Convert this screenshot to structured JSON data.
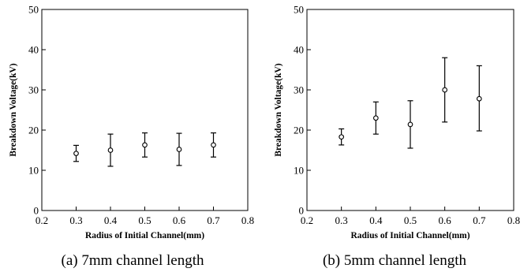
{
  "chart_data": [
    {
      "type": "scatter",
      "error_bars": true,
      "x": [
        0.3,
        0.4,
        0.5,
        0.6,
        0.7
      ],
      "y": [
        14.2,
        15.0,
        16.3,
        15.2,
        16.3
      ],
      "y_upper": [
        16.2,
        19.0,
        19.3,
        19.2,
        19.3
      ],
      "y_lower": [
        12.2,
        11.0,
        13.3,
        11.2,
        13.3
      ],
      "xlabel": "Radius of Initial Channel(mm)",
      "ylabel": "Breakdown Voltage(kV)",
      "xlim": [
        0.2,
        0.8
      ],
      "ylim": [
        0,
        50
      ],
      "xticks": [
        "0.2",
        "0.3",
        "0.4",
        "0.5",
        "0.6",
        "0.7",
        "0.8"
      ],
      "yticks": [
        "0",
        "10",
        "20",
        "30",
        "40",
        "50"
      ],
      "caption": "(a) 7mm channel length",
      "grid": false
    },
    {
      "type": "scatter",
      "error_bars": true,
      "x": [
        0.3,
        0.4,
        0.5,
        0.6,
        0.7
      ],
      "y": [
        18.3,
        23.0,
        21.4,
        30.0,
        27.8
      ],
      "y_upper": [
        20.3,
        27.0,
        27.3,
        38.0,
        36.0
      ],
      "y_lower": [
        16.3,
        19.0,
        15.5,
        22.0,
        19.8
      ],
      "xlabel": "Radius of Initial Channel(mm)",
      "ylabel": "Breakdown Voltage(kV)",
      "xlim": [
        0.2,
        0.8
      ],
      "ylim": [
        0,
        50
      ],
      "xticks": [
        "0.2",
        "0.3",
        "0.4",
        "0.5",
        "0.6",
        "0.7",
        "0.8"
      ],
      "yticks": [
        "0",
        "10",
        "20",
        "30",
        "40",
        "50"
      ],
      "caption": "(b) 5mm channel length",
      "grid": false
    }
  ]
}
